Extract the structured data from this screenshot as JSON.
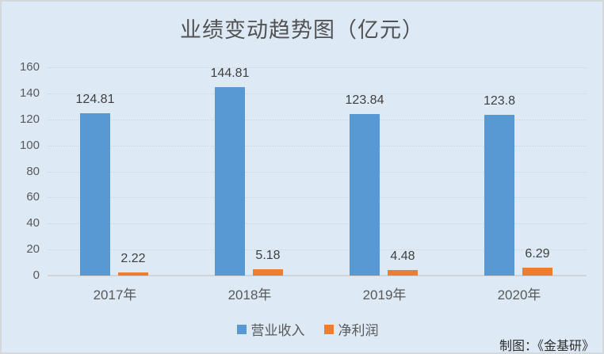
{
  "title": "业绩变动趋势图（亿元）",
  "credit": "制图：《金基研》",
  "colors": {
    "background": "#dde9f4",
    "revenue": "#5899d4",
    "profit": "#ed7d31",
    "grid": "#ced3d8",
    "axis": "#d1d5d9",
    "text": "#595959",
    "value_label": "#3f3f3f"
  },
  "chart_data": {
    "type": "bar",
    "categories": [
      "2017年",
      "2018年",
      "2019年",
      "2020年"
    ],
    "series": [
      {
        "name": "营业收入",
        "color_key": "revenue",
        "values": [
          124.81,
          144.81,
          123.84,
          123.8
        ]
      },
      {
        "name": "净利润",
        "color_key": "profit",
        "values": [
          2.22,
          5.18,
          4.48,
          6.29
        ]
      }
    ],
    "data_labels": [
      [
        "124.81",
        "144.81",
        "123.84",
        "123.8"
      ],
      [
        "2.22",
        "5.18",
        "4.48",
        "6.29"
      ]
    ],
    "ylim": [
      0,
      160
    ],
    "yticks": [
      0,
      20,
      40,
      60,
      80,
      100,
      120,
      140,
      160
    ],
    "grid": true,
    "legend_position": "bottom"
  }
}
